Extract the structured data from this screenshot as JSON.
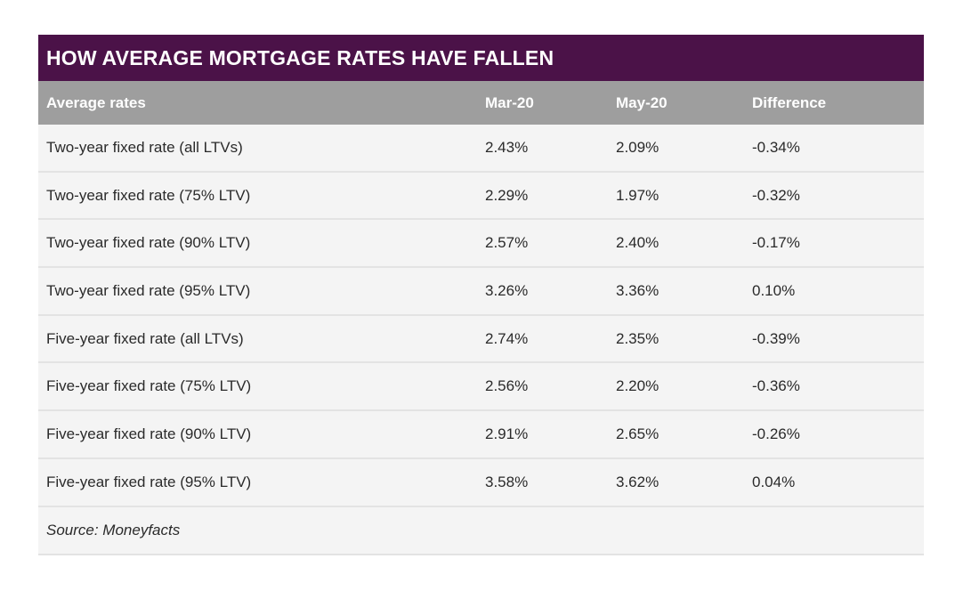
{
  "chart_data": {
    "type": "table",
    "title": "HOW AVERAGE MORTGAGE RATES HAVE FALLEN",
    "columns": [
      "Average rates",
      "Mar-20",
      "May-20",
      "Difference"
    ],
    "rows": [
      {
        "label": "Two-year fixed rate (all LTVs)",
        "mar": "2.43%",
        "may": "2.09%",
        "diff": "-0.34%"
      },
      {
        "label": "Two-year fixed rate (75% LTV)",
        "mar": "2.29%",
        "may": "1.97%",
        "diff": "-0.32%"
      },
      {
        "label": "Two-year fixed rate (90% LTV)",
        "mar": "2.57%",
        "may": "2.40%",
        "diff": "-0.17%"
      },
      {
        "label": "Two-year fixed rate (95% LTV)",
        "mar": "3.26%",
        "may": "3.36%",
        "diff": "0.10%"
      },
      {
        "label": "Five-year fixed rate (all LTVs)",
        "mar": "2.74%",
        "may": "2.35%",
        "diff": "-0.39%"
      },
      {
        "label": "Five-year fixed rate (75% LTV)",
        "mar": "2.56%",
        "may": "2.20%",
        "diff": "-0.36%"
      },
      {
        "label": "Five-year fixed rate (90% LTV)",
        "mar": "2.91%",
        "may": "2.65%",
        "diff": "-0.26%"
      },
      {
        "label": "Five-year fixed rate (95% LTV)",
        "mar": "3.58%",
        "may": "3.62%",
        "diff": "0.04%"
      }
    ],
    "source": "Source: Moneyfacts"
  },
  "colors": {
    "title_bg": "#4b1248",
    "header_bg": "#9e9e9e",
    "row_bg": "#f4f4f4"
  }
}
